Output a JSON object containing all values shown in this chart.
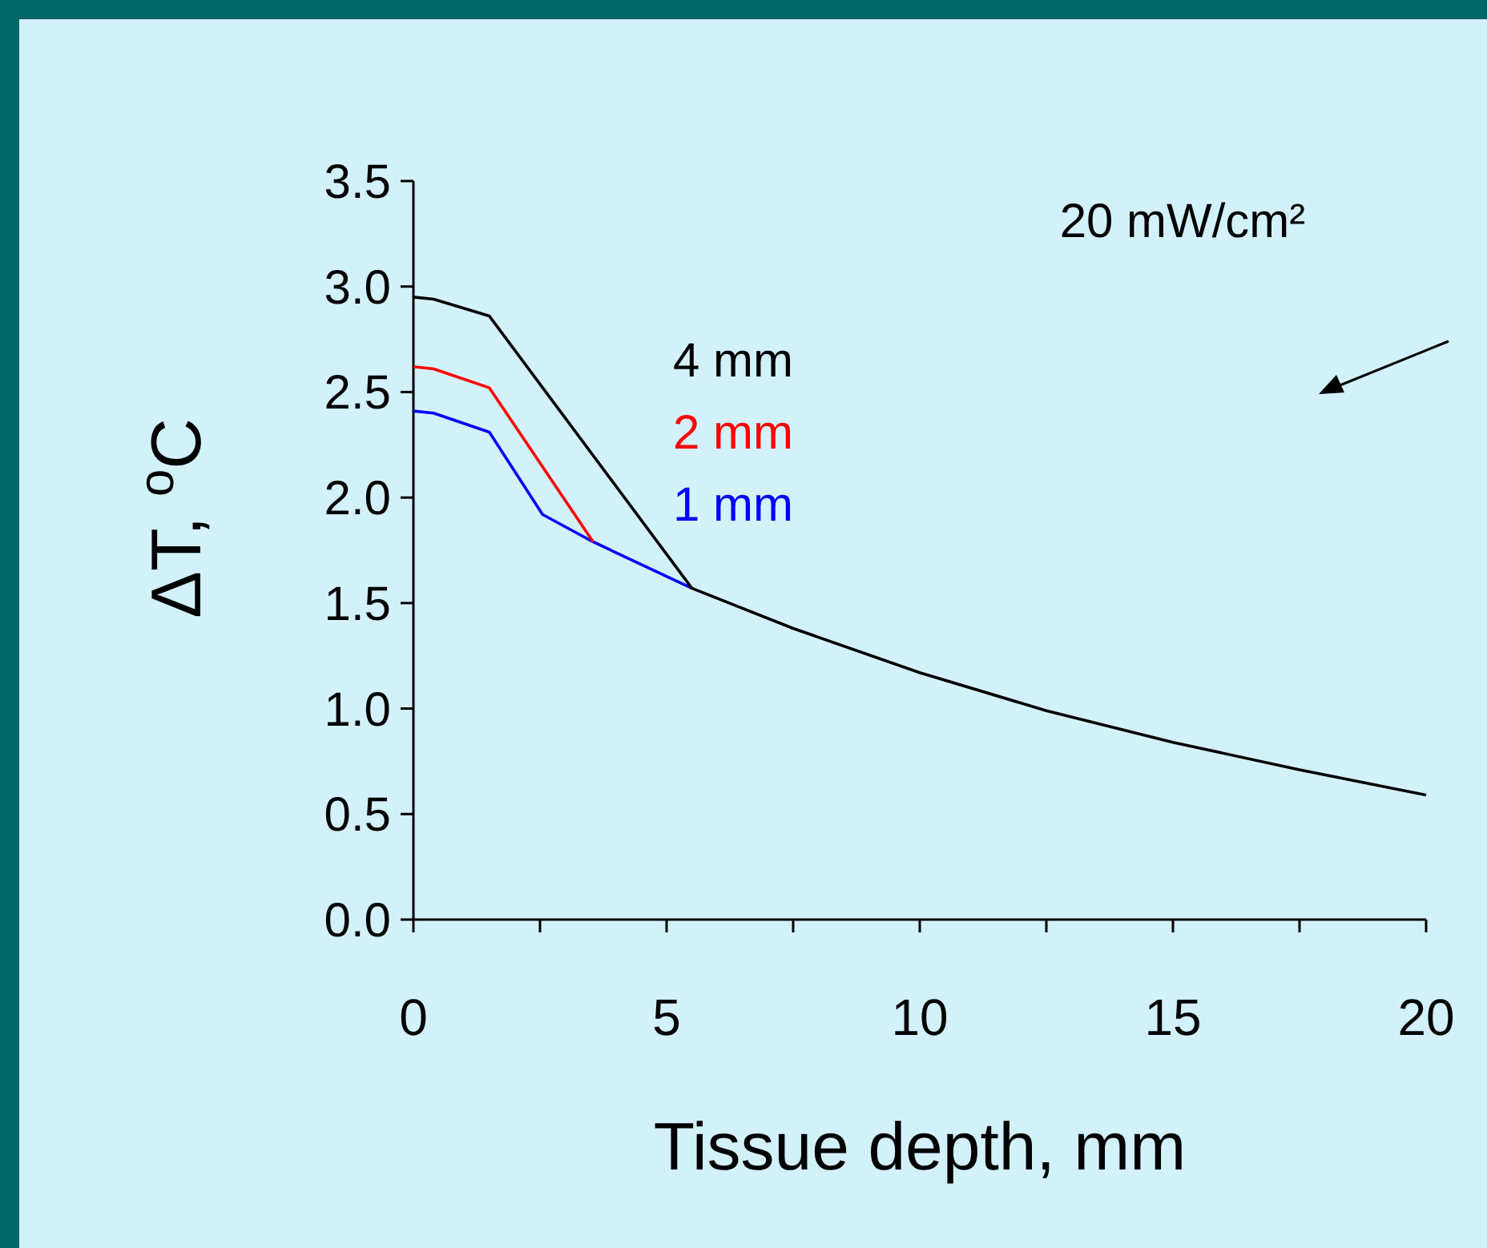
{
  "chart_data": {
    "type": "line",
    "xlabel": "Tissue depth, mm",
    "ylabel": "ΔT, $^{o}$C",
    "annotations": [
      "20 mW/cm²"
    ],
    "xlim": [
      0,
      20
    ],
    "ylim": [
      0,
      3.5
    ],
    "xticks": [
      0,
      {
        "value": 2.5,
        "label": null
      },
      5,
      {
        "value": 7.5,
        "label": null
      },
      10,
      {
        "value": 12.5,
        "label": null
      },
      15,
      {
        "value": 17.5,
        "label": null
      },
      20
    ],
    "yticks": [
      {
        "value": 0,
        "label": "0.0"
      },
      0.5,
      {
        "value": 1,
        "label": "1.0"
      },
      1.5,
      {
        "value": 2,
        "label": "2.0"
      },
      2.5,
      {
        "value": 3,
        "label": "3.0"
      },
      3.5
    ],
    "grid": false,
    "legend": "top",
    "line_style": "solid",
    "marker": "none",
    "series": [
      {
        "name": "4 mm",
        "color": "#000000",
        "x": [
          0,
          0.4,
          1.5,
          5.5,
          7.5,
          10,
          12.5,
          15,
          17.5,
          20
        ],
        "values": [
          2.95,
          2.94,
          2.86,
          1.57,
          1.38,
          1.17,
          0.99,
          0.84,
          0.71,
          0.59
        ]
      },
      {
        "name": "2 mm",
        "color": "#ff0000",
        "x": [
          0,
          0.4,
          1.5,
          3.55
        ],
        "values": [
          2.62,
          2.61,
          2.52,
          1.79
        ]
      },
      {
        "name": "1 mm",
        "color": "#0000ff",
        "x": [
          0,
          0.4,
          1.5,
          2.55,
          3.55,
          5.5
        ],
        "values": [
          2.41,
          2.4,
          2.31,
          1.92,
          1.79,
          1.57
        ]
      }
    ]
  }
}
